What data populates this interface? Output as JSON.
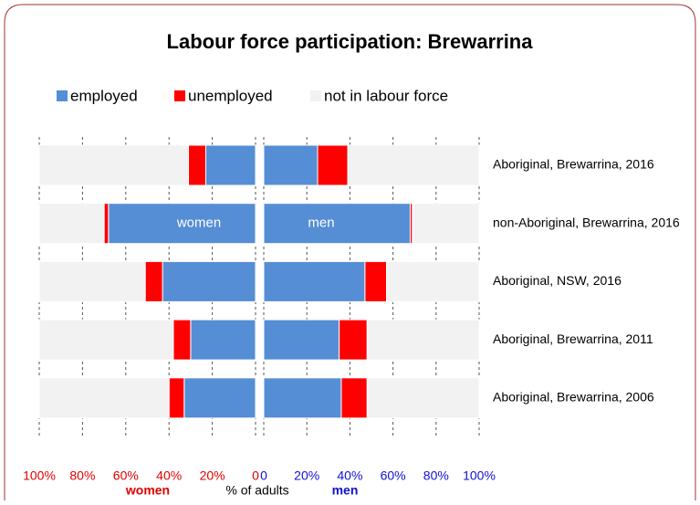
{
  "chart_data": {
    "type": "butterfly_bar",
    "title": "Labour force participation: Brewarrina",
    "legend_position": "top",
    "x_label": "% of adults",
    "categories": [
      "Aboriginal, Brewarrina, 2016",
      "non-Aboriginal, Brewarrina, 2016",
      "Aboriginal, NSW, 2016",
      "Aboriginal, Brewarrina, 2011",
      "Aboriginal, Brewarrina, 2006"
    ],
    "grid": true,
    "inner_label_row": 1,
    "panels": [
      {
        "label": "women",
        "label_color": "#e00000",
        "reversed": true,
        "xlim": [
          0,
          100
        ],
        "xticks": [
          {
            "value": 100,
            "label": "100%"
          },
          {
            "value": 80,
            "label": "80%"
          },
          {
            "value": 60,
            "label": "60%"
          },
          {
            "value": 40,
            "label": "40%"
          },
          {
            "value": 20,
            "label": "20%"
          },
          0
        ],
        "series": [
          {
            "name": "employed",
            "color": "#558ed5",
            "values": [
              23,
              68,
              43,
              30,
              33
            ]
          },
          {
            "name": "unemployed",
            "color": "#ff0000",
            "values": [
              8,
              2,
              8,
              8,
              7
            ]
          },
          {
            "name": "not in labour force",
            "color": "#f2f2f2",
            "values": [
              69,
              30,
              49,
              62,
              60
            ]
          }
        ]
      },
      {
        "label": "men",
        "label_color": "#1010d0",
        "reversed": false,
        "xlim": [
          0,
          100
        ],
        "xticks": [
          0,
          {
            "value": 20,
            "label": "20%"
          },
          {
            "value": 40,
            "label": "40%"
          },
          {
            "value": 60,
            "label": "60%"
          },
          {
            "value": 80,
            "label": "80%"
          },
          {
            "value": 100,
            "label": "100%"
          }
        ],
        "series": [
          {
            "name": "employed",
            "color": "#558ed5",
            "values": [
              25,
              68,
              47,
              35,
              36
            ]
          },
          {
            "name": "unemployed",
            "color": "#ff0000",
            "values": [
              14,
              1,
              10,
              13,
              12
            ]
          },
          {
            "name": "not in labour force",
            "color": "#f2f2f2",
            "values": [
              61,
              31,
              43,
              52,
              52
            ]
          }
        ]
      }
    ]
  }
}
